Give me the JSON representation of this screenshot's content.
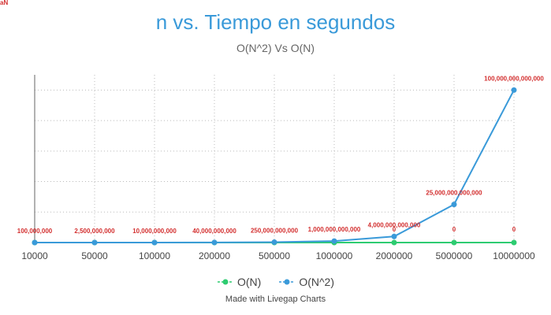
{
  "corner_tag": "aN",
  "chart_data": {
    "type": "line",
    "title": "n vs. Tiempo en segundos",
    "subtitle": "O(N^2) Vs O(N)",
    "categories": [
      "10000",
      "50000",
      "100000",
      "200000",
      "500000",
      "1000000",
      "2000000",
      "5000000",
      "10000000"
    ],
    "series": [
      {
        "name": "O(N)",
        "color": "#2ecc71",
        "values": [
          0,
          0,
          0,
          0,
          0,
          0,
          0,
          0,
          0
        ],
        "labels": [
          "",
          "",
          "",
          "",
          "",
          "",
          "0",
          "0",
          "0"
        ]
      },
      {
        "name": "O(N^2)",
        "color": "#3a9ad9",
        "values": [
          100000000,
          2500000000,
          10000000000,
          40000000000,
          250000000000,
          1000000000000,
          4000000000000,
          25000000000000,
          100000000000000
        ],
        "labels": [
          "100,000,000",
          "2,500,000,000",
          "10,000,000,000",
          "40,000,000,000",
          "250,000,000,000",
          "1,000,000,000,000",
          "4,000,000,000,000",
          "25,000,000,000,000",
          "100,000,000,000,000"
        ]
      }
    ],
    "ylim": [
      0,
      110000000000000
    ],
    "ytick_values": [
      20000000000000,
      40000000000000,
      60000000000000,
      80000000000000,
      100000000000000
    ],
    "grid": "dotted",
    "label_color": "#d32f2f",
    "legend_position": "bottom"
  },
  "credit": "Made with Livegap Charts"
}
